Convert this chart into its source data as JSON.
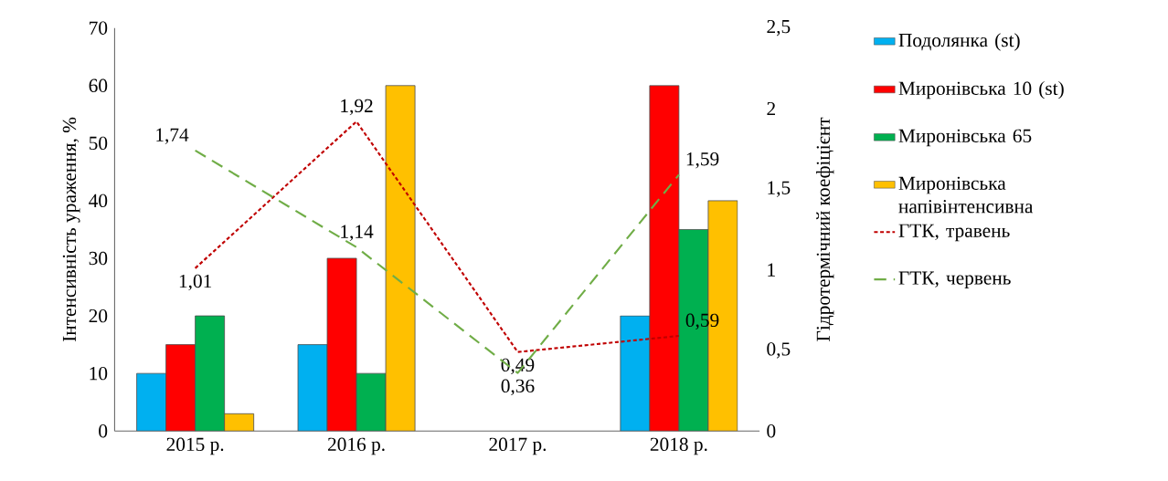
{
  "chart_data": {
    "type": "bar",
    "categories": [
      "2015 р.",
      "2016 р.",
      "2017 р.",
      "2018 р."
    ],
    "ylabel": "Інтенсивність ураження, %",
    "y2label": "Гідротермічний коефіцієнт",
    "ylim": [
      0,
      70
    ],
    "yticks": [
      0,
      10,
      20,
      30,
      40,
      50,
      60,
      70
    ],
    "y2lim": [
      0,
      2.5
    ],
    "y2ticks": [
      0,
      {
        "value": 0.5,
        "label": "0,5"
      },
      1,
      {
        "value": 1.5,
        "label": "1,5"
      },
      2,
      {
        "value": 2.5,
        "label": "2,5"
      }
    ],
    "legend": "right",
    "series": [
      {
        "name": "Подолянка (st)",
        "color": "#00b0f0",
        "values": [
          10,
          15,
          null,
          20
        ]
      },
      {
        "name": "Миронівська 10 (st)",
        "color": "#ff0000",
        "values": [
          15,
          30,
          null,
          60
        ]
      },
      {
        "name": "Миронівська 65",
        "color": "#00b050",
        "values": [
          20,
          10,
          null,
          35
        ]
      },
      {
        "name": "Миронівська напівінтенсивна",
        "color": "#ffc000",
        "values": [
          3,
          60,
          null,
          40
        ]
      },
      {
        "name": "ГТК, травень",
        "type": "line",
        "axis": "y2",
        "line_style": "dotted",
        "color": "#c00000",
        "values": [
          1.01,
          1.92,
          0.49,
          0.59
        ],
        "value_labels": [
          "1,01",
          "1,92",
          "0,49",
          "0,59"
        ]
      },
      {
        "name": "ГТК, червень",
        "type": "line",
        "axis": "y2",
        "line_style": "dashed",
        "color": "#70ad47",
        "values": [
          1.74,
          1.14,
          0.36,
          1.59
        ],
        "value_labels": [
          "1,74",
          "1,14",
          "0,36",
          "1,59"
        ]
      }
    ]
  }
}
